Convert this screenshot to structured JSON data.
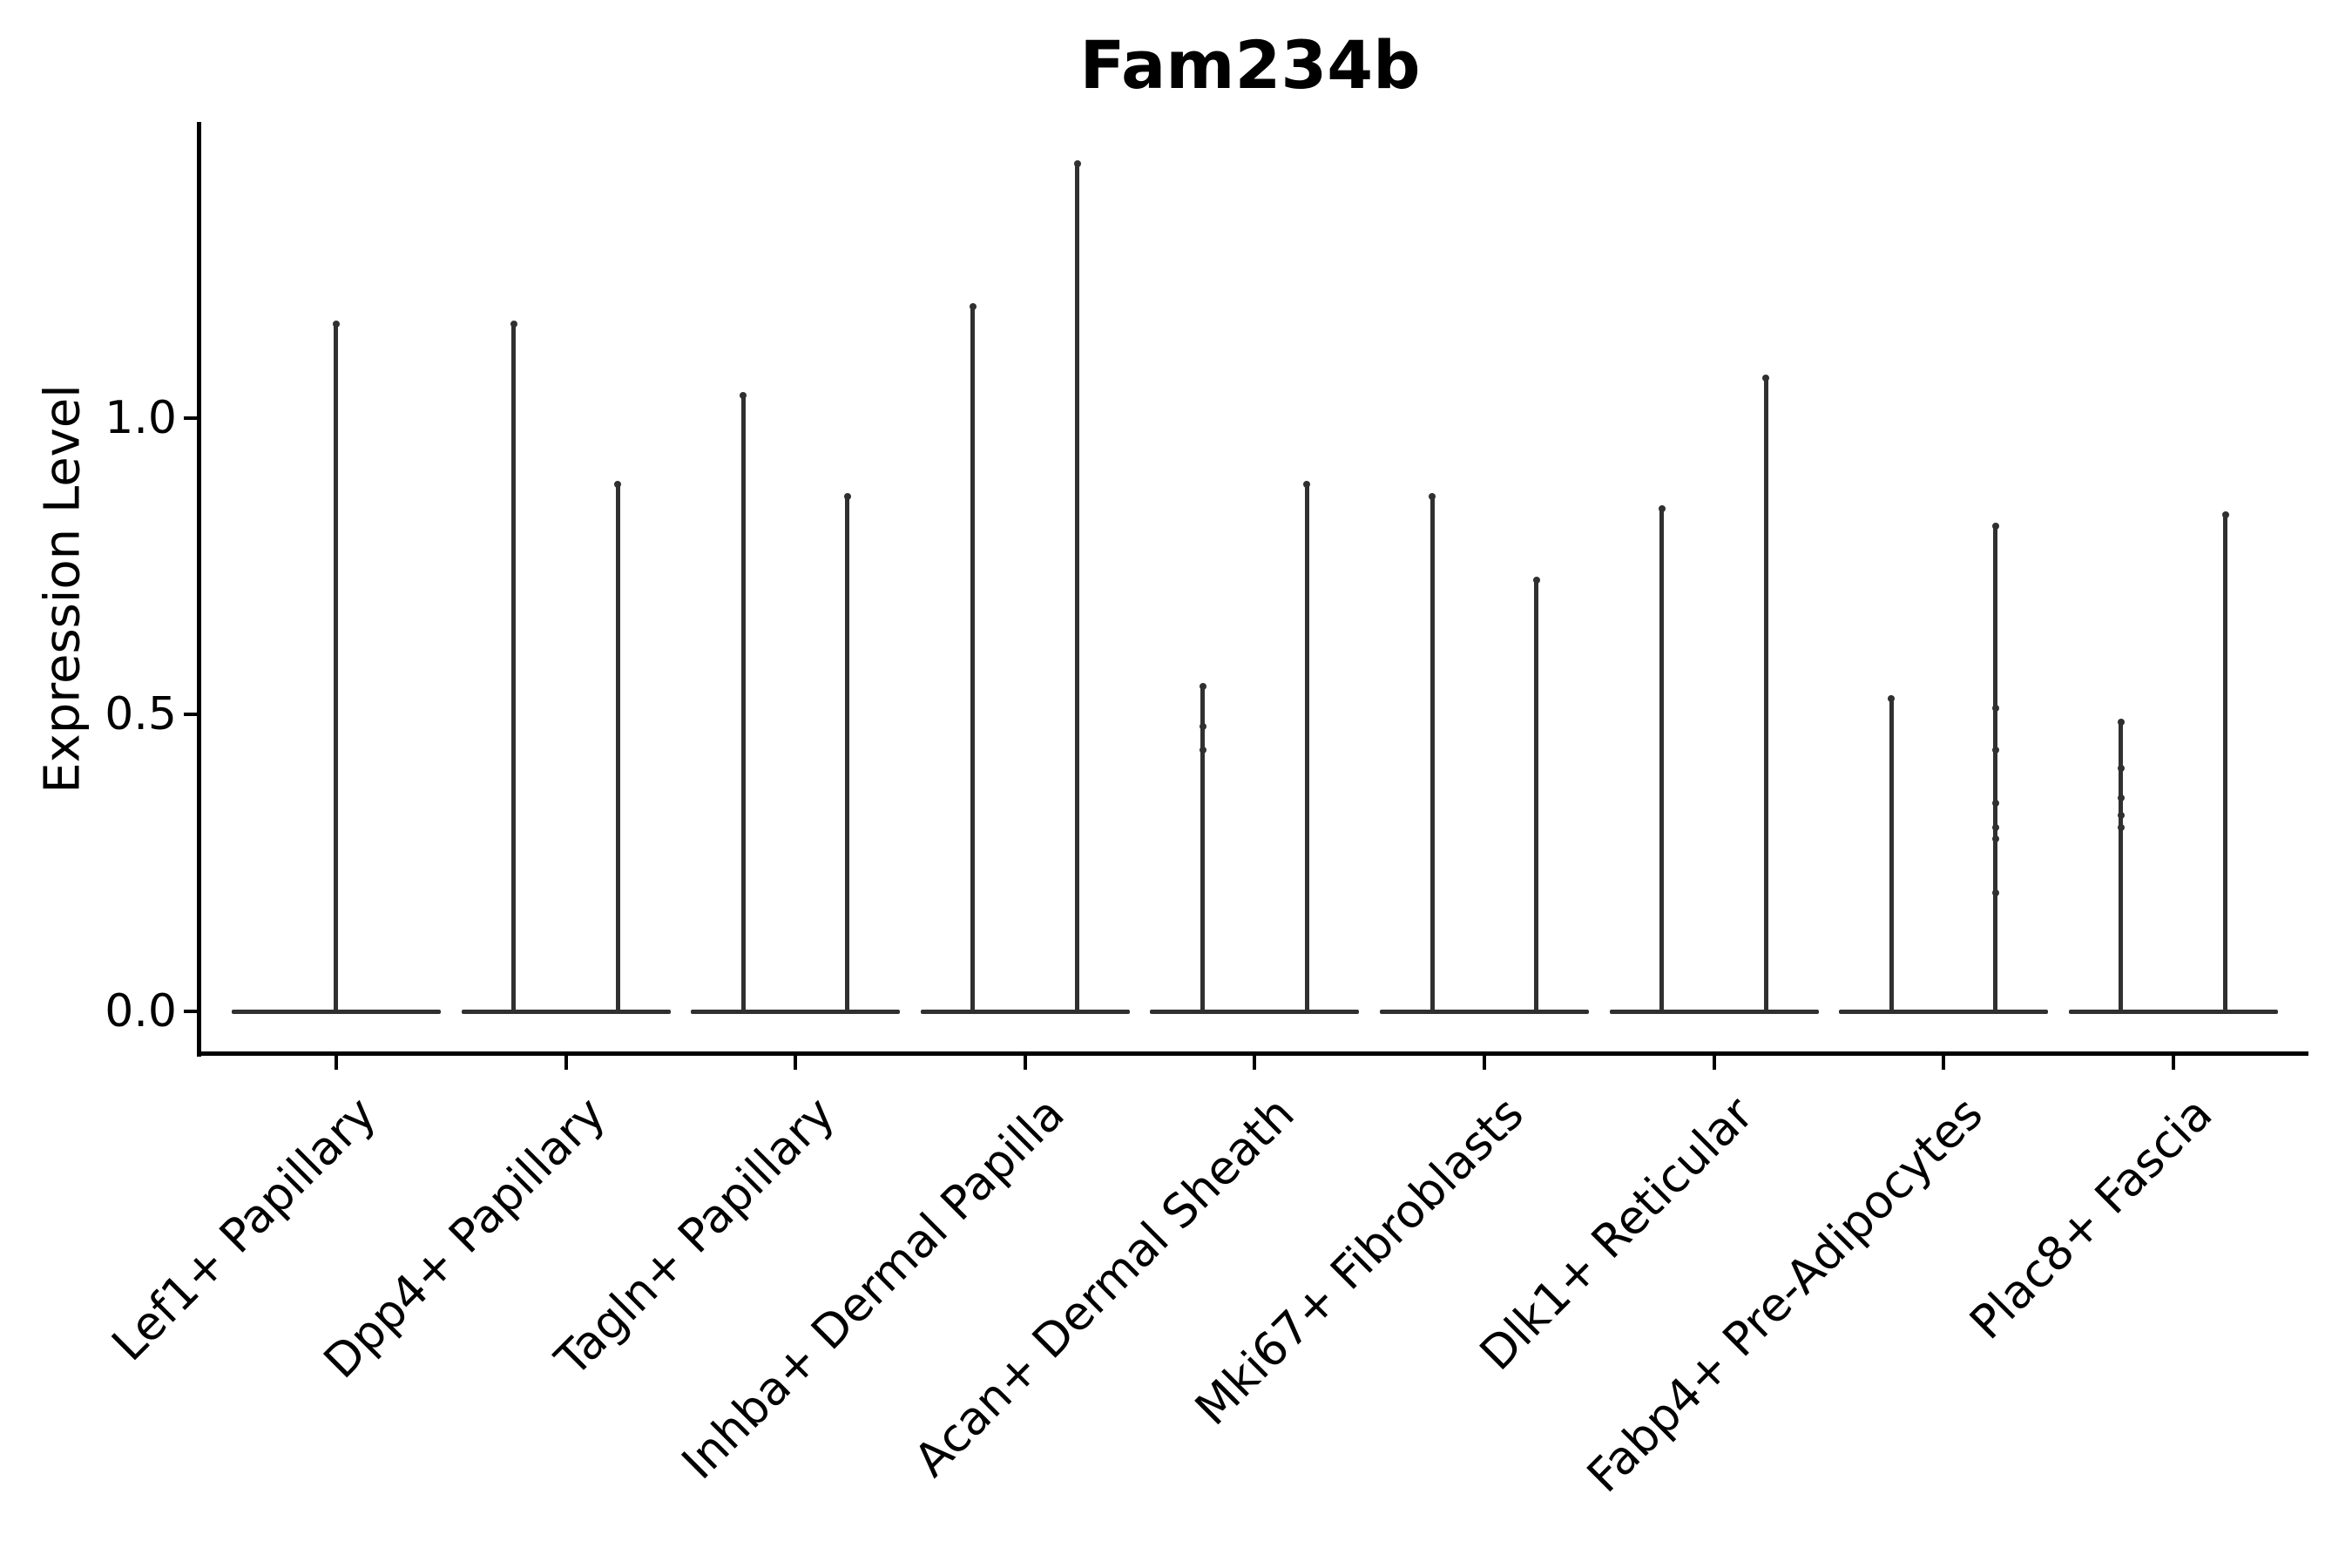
{
  "chart_data": {
    "type": "violin",
    "title": "Fam234b",
    "ylabel": "Expression Level",
    "xlabel": "",
    "ylim": [
      -0.07,
      1.5
    ],
    "yticks": [
      0.0,
      0.5,
      1.0
    ],
    "ytick_labels": [
      "0.0",
      "0.5",
      "1.0"
    ],
    "grid": false,
    "legend": "none",
    "violin_color": "#303030",
    "description": "Nine cell-type groups; each violin is extremely thin: a flat base at expression 0 with a narrow spike up to the maximum expression value. Most groups contain two violins side by side; the first group shows a single centered violin.",
    "categories": [
      "Lef1+ Papillary",
      "Dpp4+ Papillary",
      "Tagln+ Papillary",
      "Inhba+ Dermal Papilla",
      "Acan+ Dermal Sheath",
      "Mki67+ Fibroblasts",
      "Dlk1+ Reticular",
      "Fabp4+ Pre-Adipocytes",
      "Plac8+ Fascia"
    ],
    "groups": [
      {
        "category": "Lef1+ Papillary",
        "violins": [
          {
            "base": 0.0,
            "max": 1.16,
            "dots": []
          }
        ]
      },
      {
        "category": "Dpp4+ Papillary",
        "violins": [
          {
            "base": 0.0,
            "max": 1.16,
            "dots": []
          },
          {
            "base": 0.0,
            "max": 0.89,
            "dots": []
          }
        ]
      },
      {
        "category": "Tagln+ Papillary",
        "violins": [
          {
            "base": 0.0,
            "max": 1.04,
            "dots": []
          },
          {
            "base": 0.0,
            "max": 0.87,
            "dots": []
          }
        ]
      },
      {
        "category": "Inhba+ Dermal Papilla",
        "violins": [
          {
            "base": 0.0,
            "max": 1.19,
            "dots": []
          },
          {
            "base": 0.0,
            "max": 1.43,
            "dots": []
          }
        ]
      },
      {
        "category": "Acan+ Dermal Sheath",
        "violins": [
          {
            "base": 0.0,
            "max": 0.55,
            "dots": [
              0.48,
              0.44
            ]
          },
          {
            "base": 0.0,
            "max": 0.89,
            "dots": []
          }
        ]
      },
      {
        "category": "Mki67+ Fibroblasts",
        "violins": [
          {
            "base": 0.0,
            "max": 0.87,
            "dots": []
          },
          {
            "base": 0.0,
            "max": 0.73,
            "dots": []
          }
        ]
      },
      {
        "category": "Dlk1+ Reticular",
        "violins": [
          {
            "base": 0.0,
            "max": 0.85,
            "dots": []
          },
          {
            "base": 0.0,
            "max": 1.07,
            "dots": []
          }
        ]
      },
      {
        "category": "Fabp4+ Pre-Adipocytes",
        "violins": [
          {
            "base": 0.0,
            "max": 0.53,
            "dots": []
          },
          {
            "base": 0.0,
            "max": 0.82,
            "dots": [
              0.51,
              0.44,
              0.35,
              0.31,
              0.29,
              0.2
            ]
          }
        ]
      },
      {
        "category": "Plac8+ Fascia",
        "violins": [
          {
            "base": 0.0,
            "max": 0.49,
            "dots": [
              0.41,
              0.36,
              0.33,
              0.31
            ]
          },
          {
            "base": 0.0,
            "max": 0.84,
            "dots": []
          }
        ]
      }
    ]
  }
}
